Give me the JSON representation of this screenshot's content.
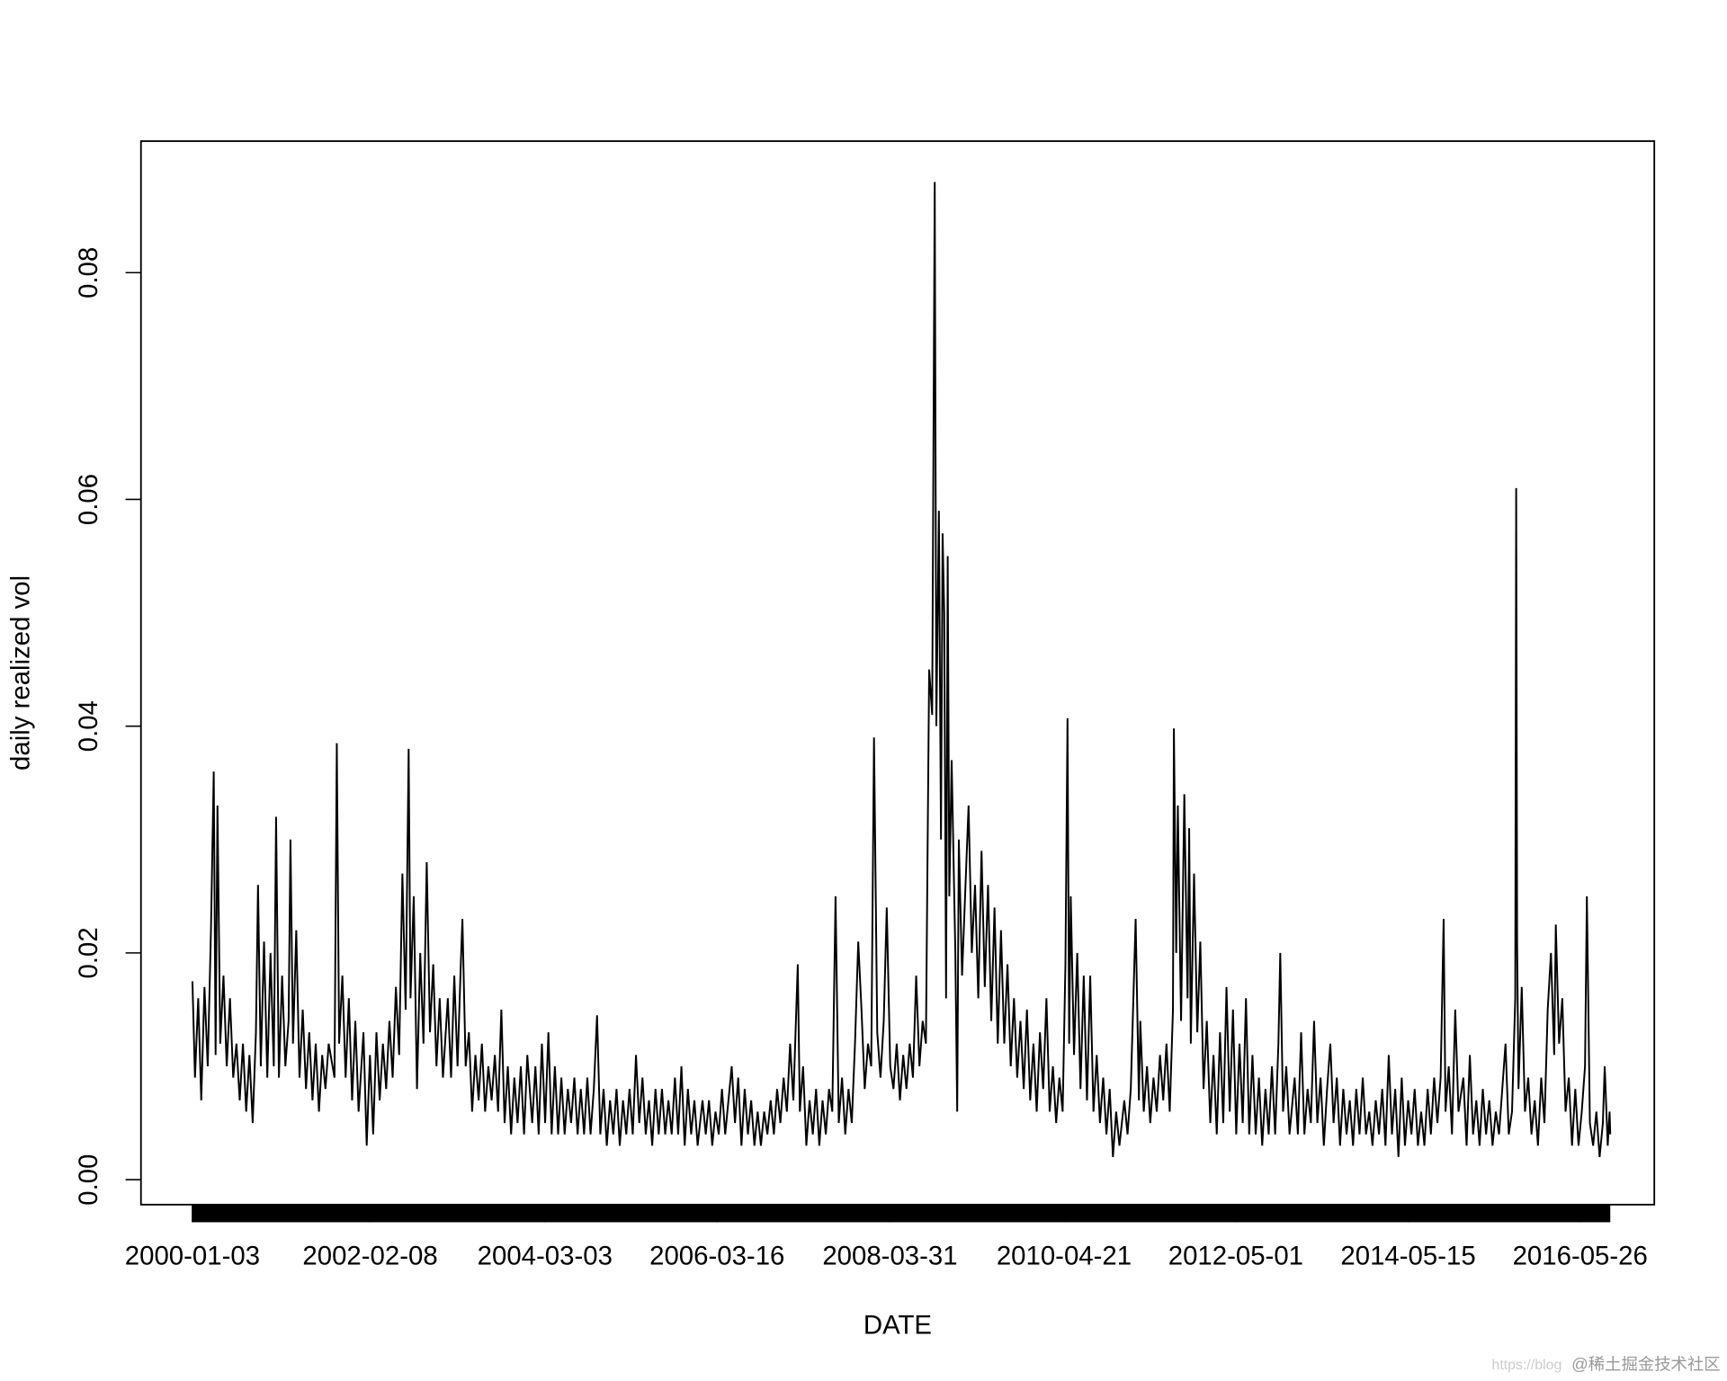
{
  "chart_data": {
    "type": "line",
    "x_label": "DATE",
    "y_label": "daily realized vol",
    "color": "#000000",
    "xlim": [
      "1999-05-26",
      "2017-04-11"
    ],
    "xticks": [
      "2000-01-03",
      "2002-02-08",
      "2004-03-03",
      "2006-03-16",
      "2008-03-31",
      "2010-04-21",
      "2012-05-01",
      "2014-05-15",
      "2016-05-26"
    ],
    "ylim": [
      -0.0022,
      0.0916
    ],
    "yticks": [
      {
        "value": 0,
        "label": "0.00"
      },
      0.02,
      0.04,
      0.06,
      0.08
    ],
    "x": [
      "2000-01-03",
      "2000-01-14",
      "2000-01-28",
      "2000-02-10",
      "2000-02-24",
      "2000-03-09",
      "2000-03-23",
      "2000-04-04",
      "2000-04-12",
      "2000-04-20",
      "2000-05-02",
      "2000-05-16",
      "2000-05-30",
      "2000-06-13",
      "2000-06-27",
      "2000-07-11",
      "2000-07-25",
      "2000-08-08",
      "2000-08-22",
      "2000-09-05",
      "2000-09-19",
      "2000-10-03",
      "2000-10-12",
      "2000-10-24",
      "2000-11-07",
      "2000-11-21",
      "2000-12-05",
      "2000-12-19",
      "2000-12-29",
      "2001-01-10",
      "2001-01-24",
      "2001-02-07",
      "2001-02-21",
      "2001-03-01",
      "2001-03-12",
      "2001-03-26",
      "2001-04-09",
      "2001-04-23",
      "2001-05-07",
      "2001-05-21",
      "2001-06-04",
      "2001-06-18",
      "2001-07-02",
      "2001-07-16",
      "2001-07-30",
      "2001-08-13",
      "2001-09-07",
      "2001-09-17",
      "2001-09-27",
      "2001-10-11",
      "2001-10-25",
      "2001-11-08",
      "2001-11-22",
      "2001-12-06",
      "2001-12-20",
      "2002-01-10",
      "2002-01-24",
      "2002-02-07",
      "2002-02-21",
      "2002-03-07",
      "2002-03-21",
      "2002-04-04",
      "2002-04-18",
      "2002-05-02",
      "2002-05-16",
      "2002-05-30",
      "2002-06-13",
      "2002-06-27",
      "2002-07-11",
      "2002-07-24",
      "2002-08-01",
      "2002-08-15",
      "2002-08-29",
      "2002-09-12",
      "2002-09-26",
      "2002-10-10",
      "2002-10-24",
      "2002-11-07",
      "2002-11-21",
      "2002-12-05",
      "2002-12-19",
      "2003-01-09",
      "2003-01-23",
      "2003-02-06",
      "2003-02-20",
      "2003-03-06",
      "2003-03-13",
      "2003-03-27",
      "2003-04-10",
      "2003-04-24",
      "2003-05-08",
      "2003-05-22",
      "2003-06-05",
      "2003-06-19",
      "2003-07-03",
      "2003-07-17",
      "2003-07-31",
      "2003-08-14",
      "2003-08-28",
      "2003-09-11",
      "2003-09-25",
      "2003-10-09",
      "2003-10-23",
      "2003-11-06",
      "2003-11-20",
      "2003-12-04",
      "2003-12-18",
      "2004-01-08",
      "2004-01-22",
      "2004-02-05",
      "2004-02-19",
      "2004-03-04",
      "2004-03-18",
      "2004-04-01",
      "2004-04-15",
      "2004-04-29",
      "2004-05-13",
      "2004-05-27",
      "2004-06-10",
      "2004-06-24",
      "2004-07-08",
      "2004-07-22",
      "2004-08-05",
      "2004-08-19",
      "2004-09-02",
      "2004-09-16",
      "2004-09-30",
      "2004-10-14",
      "2004-10-28",
      "2004-11-11",
      "2004-11-25",
      "2004-12-09",
      "2004-12-23",
      "2005-01-06",
      "2005-01-20",
      "2005-02-03",
      "2005-02-17",
      "2005-03-03",
      "2005-03-17",
      "2005-03-31",
      "2005-04-14",
      "2005-04-28",
      "2005-05-12",
      "2005-05-26",
      "2005-06-09",
      "2005-06-23",
      "2005-07-07",
      "2005-07-21",
      "2005-08-04",
      "2005-08-18",
      "2005-09-01",
      "2005-09-15",
      "2005-09-29",
      "2005-10-13",
      "2005-10-27",
      "2005-11-10",
      "2005-11-24",
      "2005-12-08",
      "2005-12-22",
      "2006-01-12",
      "2006-01-26",
      "2006-02-09",
      "2006-02-23",
      "2006-03-09",
      "2006-03-23",
      "2006-04-06",
      "2006-04-20",
      "2006-05-04",
      "2006-05-18",
      "2006-06-01",
      "2006-06-15",
      "2006-06-29",
      "2006-07-13",
      "2006-07-27",
      "2006-08-10",
      "2006-08-24",
      "2006-09-07",
      "2006-09-21",
      "2006-10-05",
      "2006-10-19",
      "2006-11-02",
      "2006-11-16",
      "2006-11-30",
      "2006-12-14",
      "2006-12-28",
      "2007-01-11",
      "2007-01-25",
      "2007-02-08",
      "2007-02-27",
      "2007-03-08",
      "2007-03-22",
      "2007-04-05",
      "2007-04-19",
      "2007-05-03",
      "2007-05-17",
      "2007-05-31",
      "2007-06-14",
      "2007-06-28",
      "2007-07-12",
      "2007-07-26",
      "2007-08-09",
      "2007-08-23",
      "2007-09-06",
      "2007-09-20",
      "2007-10-04",
      "2007-10-18",
      "2007-11-01",
      "2007-11-15",
      "2007-11-29",
      "2007-12-13",
      "2007-12-27",
      "2008-01-10",
      "2008-01-22",
      "2008-02-05",
      "2008-02-19",
      "2008-03-04",
      "2008-03-17",
      "2008-04-01",
      "2008-04-15",
      "2008-04-29",
      "2008-05-13",
      "2008-05-27",
      "2008-06-10",
      "2008-06-24",
      "2008-07-08",
      "2008-07-22",
      "2008-08-05",
      "2008-08-19",
      "2008-09-02",
      "2008-09-16",
      "2008-09-29",
      "2008-10-10",
      "2008-10-17",
      "2008-10-28",
      "2008-11-06",
      "2008-11-13",
      "2008-11-20",
      "2008-11-28",
      "2008-12-05",
      "2008-12-12",
      "2008-12-22",
      "2009-01-07",
      "2009-01-15",
      "2009-01-22",
      "2009-02-05",
      "2009-02-18",
      "2009-03-05",
      "2009-03-19",
      "2009-04-02",
      "2009-04-16",
      "2009-04-30",
      "2009-05-14",
      "2009-05-28",
      "2009-06-11",
      "2009-06-25",
      "2009-07-09",
      "2009-07-23",
      "2009-08-06",
      "2009-08-20",
      "2009-09-03",
      "2009-09-17",
      "2009-10-01",
      "2009-10-15",
      "2009-10-29",
      "2009-11-12",
      "2009-11-26",
      "2009-12-10",
      "2009-12-24",
      "2010-01-07",
      "2010-01-21",
      "2010-02-04",
      "2010-02-18",
      "2010-03-04",
      "2010-03-18",
      "2010-04-01",
      "2010-04-15",
      "2010-04-27",
      "2010-05-06",
      "2010-05-13",
      "2010-05-20",
      "2010-06-03",
      "2010-06-17",
      "2010-07-01",
      "2010-07-15",
      "2010-07-29",
      "2010-08-12",
      "2010-08-26",
      "2010-09-09",
      "2010-09-23",
      "2010-10-07",
      "2010-10-21",
      "2010-11-04",
      "2010-11-18",
      "2010-12-02",
      "2010-12-16",
      "2011-01-06",
      "2011-01-20",
      "2011-02-03",
      "2011-02-24",
      "2011-03-10",
      "2011-03-16",
      "2011-03-31",
      "2011-04-14",
      "2011-04-28",
      "2011-05-12",
      "2011-05-26",
      "2011-06-09",
      "2011-06-23",
      "2011-07-07",
      "2011-07-21",
      "2011-08-04",
      "2011-08-08",
      "2011-08-18",
      "2011-08-25",
      "2011-09-08",
      "2011-09-22",
      "2011-10-06",
      "2011-10-13",
      "2011-10-20",
      "2011-11-03",
      "2011-11-17",
      "2011-11-30",
      "2011-12-14",
      "2011-12-28",
      "2012-01-12",
      "2012-01-26",
      "2012-02-09",
      "2012-02-23",
      "2012-03-08",
      "2012-03-22",
      "2012-04-05",
      "2012-04-19",
      "2012-05-03",
      "2012-05-17",
      "2012-05-31",
      "2012-06-14",
      "2012-06-28",
      "2012-07-12",
      "2012-07-26",
      "2012-08-09",
      "2012-08-23",
      "2012-09-06",
      "2012-09-20",
      "2012-10-04",
      "2012-10-18",
      "2012-11-01",
      "2012-11-09",
      "2012-11-21",
      "2012-12-05",
      "2012-12-19",
      "2013-01-10",
      "2013-01-24",
      "2013-02-07",
      "2013-02-21",
      "2013-03-07",
      "2013-03-21",
      "2013-04-04",
      "2013-04-18",
      "2013-05-02",
      "2013-05-16",
      "2013-05-30",
      "2013-06-13",
      "2013-06-27",
      "2013-07-11",
      "2013-07-25",
      "2013-08-08",
      "2013-08-22",
      "2013-09-05",
      "2013-09-19",
      "2013-10-03",
      "2013-10-17",
      "2013-10-31",
      "2013-11-14",
      "2013-11-28",
      "2013-12-12",
      "2013-12-26",
      "2014-01-09",
      "2014-01-23",
      "2014-02-06",
      "2014-02-20",
      "2014-03-06",
      "2014-03-20",
      "2014-04-03",
      "2014-04-17",
      "2014-05-01",
      "2014-05-15",
      "2014-05-29",
      "2014-06-12",
      "2014-06-26",
      "2014-07-10",
      "2014-07-24",
      "2014-08-07",
      "2014-08-21",
      "2014-09-04",
      "2014-09-18",
      "2014-10-02",
      "2014-10-15",
      "2014-10-23",
      "2014-11-06",
      "2014-11-20",
      "2014-12-04",
      "2014-12-18",
      "2015-01-08",
      "2015-01-22",
      "2015-02-05",
      "2015-02-19",
      "2015-03-05",
      "2015-03-19",
      "2015-04-02",
      "2015-04-16",
      "2015-04-30",
      "2015-05-14",
      "2015-05-28",
      "2015-06-11",
      "2015-06-25",
      "2015-07-09",
      "2015-07-23",
      "2015-08-06",
      "2015-08-20",
      "2015-08-24",
      "2015-08-28",
      "2015-09-03",
      "2015-09-17",
      "2015-10-01",
      "2015-10-15",
      "2015-10-29",
      "2015-11-12",
      "2015-11-26",
      "2015-12-10",
      "2015-12-24",
      "2016-01-07",
      "2016-01-21",
      "2016-02-04",
      "2016-02-11",
      "2016-02-25",
      "2016-03-10",
      "2016-03-24",
      "2016-04-07",
      "2016-04-21",
      "2016-05-05",
      "2016-05-19",
      "2016-06-02",
      "2016-06-16",
      "2016-06-24",
      "2016-07-07",
      "2016-07-21",
      "2016-08-04",
      "2016-08-18",
      "2016-09-01",
      "2016-09-09",
      "2016-09-22",
      "2016-09-30",
      "2016-10-03"
    ],
    "values": [
      0.0175,
      0.009,
      0.016,
      0.007,
      0.017,
      0.01,
      0.022,
      0.036,
      0.011,
      0.033,
      0.012,
      0.018,
      0.01,
      0.016,
      0.009,
      0.012,
      0.007,
      0.012,
      0.006,
      0.011,
      0.005,
      0.013,
      0.026,
      0.01,
      0.021,
      0.009,
      0.02,
      0.01,
      0.032,
      0.009,
      0.018,
      0.01,
      0.014,
      0.03,
      0.012,
      0.022,
      0.009,
      0.015,
      0.008,
      0.013,
      0.007,
      0.012,
      0.006,
      0.011,
      0.008,
      0.012,
      0.009,
      0.0385,
      0.012,
      0.018,
      0.009,
      0.016,
      0.007,
      0.014,
      0.006,
      0.013,
      0.003,
      0.011,
      0.004,
      0.013,
      0.007,
      0.012,
      0.008,
      0.014,
      0.009,
      0.017,
      0.011,
      0.027,
      0.015,
      0.038,
      0.016,
      0.025,
      0.008,
      0.02,
      0.012,
      0.028,
      0.013,
      0.019,
      0.01,
      0.016,
      0.009,
      0.016,
      0.009,
      0.018,
      0.01,
      0.019,
      0.023,
      0.01,
      0.013,
      0.006,
      0.011,
      0.007,
      0.012,
      0.006,
      0.01,
      0.007,
      0.011,
      0.006,
      0.015,
      0.005,
      0.01,
      0.004,
      0.009,
      0.005,
      0.01,
      0.004,
      0.011,
      0.005,
      0.01,
      0.004,
      0.012,
      0.005,
      0.013,
      0.004,
      0.01,
      0.004,
      0.009,
      0.004,
      0.008,
      0.005,
      0.009,
      0.004,
      0.008,
      0.004,
      0.009,
      0.004,
      0.008,
      0.0145,
      0.004,
      0.008,
      0.003,
      0.007,
      0.004,
      0.008,
      0.003,
      0.007,
      0.004,
      0.008,
      0.004,
      0.011,
      0.005,
      0.009,
      0.004,
      0.007,
      0.003,
      0.008,
      0.004,
      0.008,
      0.004,
      0.007,
      0.004,
      0.009,
      0.004,
      0.01,
      0.003,
      0.008,
      0.004,
      0.007,
      0.003,
      0.007,
      0.004,
      0.007,
      0.003,
      0.006,
      0.004,
      0.008,
      0.004,
      0.007,
      0.01,
      0.005,
      0.009,
      0.003,
      0.008,
      0.004,
      0.007,
      0.003,
      0.006,
      0.003,
      0.006,
      0.004,
      0.007,
      0.004,
      0.008,
      0.005,
      0.009,
      0.006,
      0.012,
      0.007,
      0.019,
      0.006,
      0.01,
      0.003,
      0.007,
      0.004,
      0.008,
      0.003,
      0.007,
      0.004,
      0.008,
      0.006,
      0.025,
      0.005,
      0.009,
      0.004,
      0.008,
      0.005,
      0.012,
      0.021,
      0.015,
      0.008,
      0.012,
      0.01,
      0.039,
      0.013,
      0.009,
      0.014,
      0.024,
      0.01,
      0.008,
      0.012,
      0.007,
      0.011,
      0.008,
      0.012,
      0.009,
      0.018,
      0.01,
      0.014,
      0.012,
      0.045,
      0.041,
      0.088,
      0.04,
      0.059,
      0.03,
      0.057,
      0.05,
      0.016,
      0.055,
      0.025,
      0.037,
      0.02,
      0.006,
      0.03,
      0.018,
      0.025,
      0.033,
      0.02,
      0.026,
      0.016,
      0.029,
      0.017,
      0.026,
      0.014,
      0.024,
      0.012,
      0.022,
      0.012,
      0.019,
      0.01,
      0.016,
      0.009,
      0.014,
      0.008,
      0.015,
      0.007,
      0.012,
      0.006,
      0.013,
      0.008,
      0.016,
      0.006,
      0.01,
      0.005,
      0.009,
      0.006,
      0.019,
      0.0407,
      0.012,
      0.025,
      0.011,
      0.02,
      0.008,
      0.018,
      0.007,
      0.018,
      0.006,
      0.011,
      0.005,
      0.009,
      0.004,
      0.008,
      0.002,
      0.006,
      0.003,
      0.007,
      0.004,
      0.008,
      0.023,
      0.007,
      0.014,
      0.006,
      0.01,
      0.005,
      0.009,
      0.006,
      0.011,
      0.007,
      0.012,
      0.006,
      0.015,
      0.0398,
      0.02,
      0.033,
      0.014,
      0.034,
      0.016,
      0.031,
      0.012,
      0.027,
      0.013,
      0.021,
      0.008,
      0.014,
      0.005,
      0.011,
      0.004,
      0.013,
      0.005,
      0.017,
      0.006,
      0.015,
      0.004,
      0.012,
      0.005,
      0.016,
      0.004,
      0.011,
      0.004,
      0.009,
      0.003,
      0.008,
      0.004,
      0.01,
      0.004,
      0.012,
      0.02,
      0.006,
      0.01,
      0.004,
      0.009,
      0.004,
      0.013,
      0.004,
      0.008,
      0.005,
      0.014,
      0.005,
      0.009,
      0.003,
      0.008,
      0.012,
      0.005,
      0.009,
      0.003,
      0.008,
      0.004,
      0.007,
      0.003,
      0.008,
      0.004,
      0.009,
      0.004,
      0.006,
      0.003,
      0.007,
      0.004,
      0.008,
      0.003,
      0.011,
      0.004,
      0.008,
      0.002,
      0.009,
      0.003,
      0.007,
      0.004,
      0.008,
      0.003,
      0.006,
      0.003,
      0.008,
      0.004,
      0.009,
      0.005,
      0.009,
      0.023,
      0.006,
      0.01,
      0.004,
      0.015,
      0.006,
      0.009,
      0.003,
      0.011,
      0.004,
      0.007,
      0.003,
      0.008,
      0.004,
      0.007,
      0.003,
      0.006,
      0.004,
      0.008,
      0.012,
      0.004,
      0.006,
      0.016,
      0.061,
      0.021,
      0.008,
      0.017,
      0.006,
      0.009,
      0.004,
      0.007,
      0.003,
      0.009,
      0.005,
      0.015,
      0.02,
      0.011,
      0.0225,
      0.012,
      0.016,
      0.006,
      0.009,
      0.003,
      0.008,
      0.003,
      0.006,
      0.01,
      0.025,
      0.005,
      0.003,
      0.006,
      0.002,
      0.005,
      0.01,
      0.003,
      0.006,
      0.004
    ]
  },
  "watermark": {
    "url": "https://blog",
    "text": "@稀土掘金技术社区"
  }
}
